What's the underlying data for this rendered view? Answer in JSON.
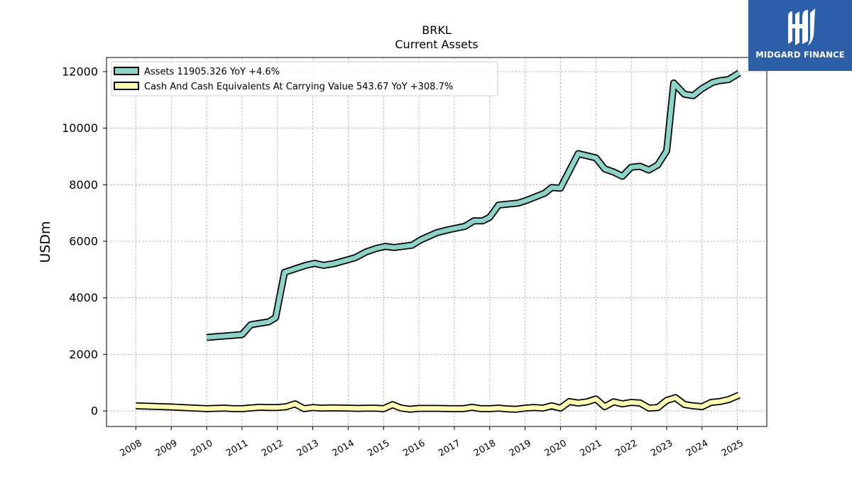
{
  "chart_data": {
    "type": "line",
    "title": "BRKL",
    "subtitle": "Current  Assets",
    "ylabel": "USDm",
    "xlabel": "",
    "ylim": [
      -550,
      12500
    ],
    "xlim": [
      2007.17,
      2025.83
    ],
    "yticks": [
      0,
      2000,
      4000,
      6000,
      8000,
      10000,
      12000
    ],
    "xticks": [
      "2008",
      "2009",
      "2010",
      "2011",
      "2012",
      "2013",
      "2014",
      "2015",
      "2016",
      "2017",
      "2018",
      "2019",
      "2020",
      "2021",
      "2022",
      "2023",
      "2024",
      "2025"
    ],
    "grid": true,
    "legend_position": "top-left",
    "series": [
      {
        "name": "Assets",
        "legend_label": "Assets  11905.326 YoY +4.6%",
        "color": "#8dd3c7",
        "points": [
          [
            2010.0,
            2600
          ],
          [
            2011.0,
            2700
          ],
          [
            2011.25,
            3050
          ],
          [
            2011.75,
            3150
          ],
          [
            2011.95,
            3300
          ],
          [
            2012.2,
            4900
          ],
          [
            2012.8,
            5150
          ],
          [
            2013.05,
            5220
          ],
          [
            2013.3,
            5150
          ],
          [
            2013.6,
            5210
          ],
          [
            2014.2,
            5420
          ],
          [
            2014.5,
            5620
          ],
          [
            2014.8,
            5750
          ],
          [
            2015.05,
            5820
          ],
          [
            2015.3,
            5780
          ],
          [
            2015.8,
            5860
          ],
          [
            2016.05,
            6050
          ],
          [
            2016.5,
            6300
          ],
          [
            2016.8,
            6400
          ],
          [
            2017.3,
            6530
          ],
          [
            2017.55,
            6720
          ],
          [
            2017.8,
            6720
          ],
          [
            2018.0,
            6850
          ],
          [
            2018.25,
            7280
          ],
          [
            2018.8,
            7350
          ],
          [
            2019.05,
            7450
          ],
          [
            2019.55,
            7700
          ],
          [
            2019.75,
            7900
          ],
          [
            2020.0,
            7880
          ],
          [
            2020.5,
            9100
          ],
          [
            2021.0,
            8950
          ],
          [
            2021.25,
            8560
          ],
          [
            2021.5,
            8450
          ],
          [
            2021.75,
            8300
          ],
          [
            2022.0,
            8620
          ],
          [
            2022.25,
            8650
          ],
          [
            2022.5,
            8520
          ],
          [
            2022.75,
            8700
          ],
          [
            2023.0,
            9200
          ],
          [
            2023.2,
            11600
          ],
          [
            2023.5,
            11200
          ],
          [
            2023.75,
            11150
          ],
          [
            2024.0,
            11400
          ],
          [
            2024.3,
            11620
          ],
          [
            2024.5,
            11680
          ],
          [
            2024.75,
            11720
          ],
          [
            2025.05,
            11950
          ]
        ]
      },
      {
        "name": "Cash And Cash Equivalents At Carrying Value",
        "legend_label": "Cash And Cash Equivalents At Carrying Value  543.67 YoY +308.7%",
        "color": "#ffffb3",
        "points": [
          [
            2008.0,
            180
          ],
          [
            2009.0,
            140
          ],
          [
            2010.0,
            80
          ],
          [
            2010.5,
            100
          ],
          [
            2010.75,
            80
          ],
          [
            2011.0,
            80
          ],
          [
            2011.5,
            130
          ],
          [
            2011.75,
            120
          ],
          [
            2012.0,
            120
          ],
          [
            2012.25,
            150
          ],
          [
            2012.5,
            250
          ],
          [
            2012.75,
            80
          ],
          [
            2013.0,
            120
          ],
          [
            2013.25,
            100
          ],
          [
            2013.5,
            110
          ],
          [
            2014.0,
            100
          ],
          [
            2014.25,
            90
          ],
          [
            2014.75,
            100
          ],
          [
            2015.0,
            80
          ],
          [
            2015.25,
            220
          ],
          [
            2015.5,
            100
          ],
          [
            2015.75,
            60
          ],
          [
            2016.0,
            90
          ],
          [
            2016.5,
            90
          ],
          [
            2017.0,
            80
          ],
          [
            2017.25,
            80
          ],
          [
            2017.5,
            130
          ],
          [
            2017.75,
            80
          ],
          [
            2018.0,
            80
          ],
          [
            2018.25,
            100
          ],
          [
            2018.5,
            70
          ],
          [
            2018.75,
            60
          ],
          [
            2019.0,
            100
          ],
          [
            2019.25,
            120
          ],
          [
            2019.5,
            100
          ],
          [
            2019.75,
            180
          ],
          [
            2020.0,
            100
          ],
          [
            2020.25,
            330
          ],
          [
            2020.5,
            280
          ],
          [
            2020.75,
            320
          ],
          [
            2021.0,
            420
          ],
          [
            2021.25,
            150
          ],
          [
            2021.5,
            320
          ],
          [
            2021.75,
            250
          ],
          [
            2022.0,
            300
          ],
          [
            2022.25,
            280
          ],
          [
            2022.5,
            100
          ],
          [
            2022.75,
            120
          ],
          [
            2023.0,
            370
          ],
          [
            2023.25,
            470
          ],
          [
            2023.5,
            230
          ],
          [
            2023.75,
            180
          ],
          [
            2024.0,
            150
          ],
          [
            2024.25,
            300
          ],
          [
            2024.5,
            330
          ],
          [
            2024.75,
            400
          ],
          [
            2025.05,
            560
          ]
        ]
      }
    ]
  },
  "logo": {
    "text": "MIDGARD FINANCE",
    "icon": "midgard-logo-icon",
    "color": "#2d5fa8"
  }
}
